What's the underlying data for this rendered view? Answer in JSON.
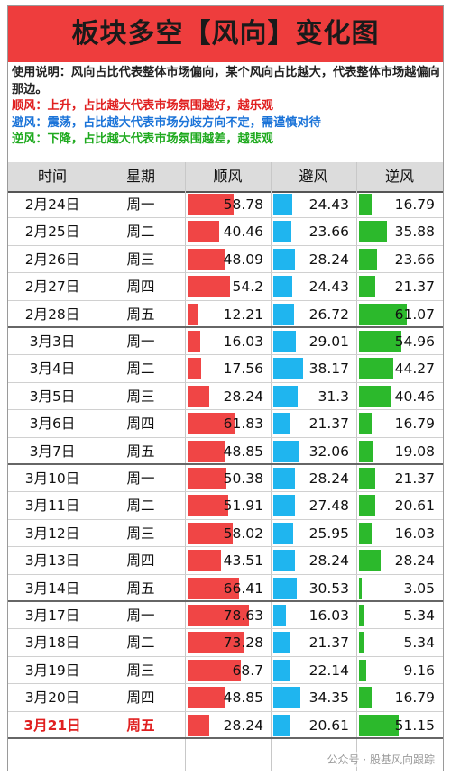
{
  "title": "板块多空【风向】变化图",
  "notes": {
    "usage": "使用说明：风向占比代表整体市场偏向，某个风向占比越大，代表整体市场越偏向那边。",
    "up": "顺风：上升，占比越大代表市场氛围越好，越乐观",
    "mid": "避风：震荡，占比越大代表市场分歧方向不定，需谨慎对待",
    "down": "逆风：下降，占比越大代表市场氛围越差，越悲观"
  },
  "colors": {
    "up": "#f04545",
    "mid": "#1fb5ef",
    "down": "#2cb92c",
    "title_bg": "#ee3d3d"
  },
  "watermark": "公众号 · 股基风向跟踪",
  "chart_data": {
    "type": "table",
    "columns": [
      "时间",
      "星期",
      "顺风",
      "避风",
      "逆风"
    ],
    "bar_max": 100,
    "rows": [
      {
        "date": "2月24日",
        "day": "周一",
        "up": 58.78,
        "mid": 24.43,
        "down": 16.79
      },
      {
        "date": "2月25日",
        "day": "周二",
        "up": 40.46,
        "mid": 23.66,
        "down": 35.88
      },
      {
        "date": "2月26日",
        "day": "周三",
        "up": 48.09,
        "mid": 28.24,
        "down": 23.66
      },
      {
        "date": "2月27日",
        "day": "周四",
        "up": 54.2,
        "mid": 24.43,
        "down": 21.37
      },
      {
        "date": "2月28日",
        "day": "周五",
        "up": 12.21,
        "mid": 26.72,
        "down": 61.07
      },
      {
        "date": "3月3日",
        "day": "周一",
        "up": 16.03,
        "mid": 29.01,
        "down": 54.96
      },
      {
        "date": "3月4日",
        "day": "周二",
        "up": 17.56,
        "mid": 38.17,
        "down": 44.27
      },
      {
        "date": "3月5日",
        "day": "周三",
        "up": 28.24,
        "mid": 31.3,
        "down": 40.46
      },
      {
        "date": "3月6日",
        "day": "周四",
        "up": 61.83,
        "mid": 21.37,
        "down": 16.79
      },
      {
        "date": "3月7日",
        "day": "周五",
        "up": 48.85,
        "mid": 32.06,
        "down": 19.08
      },
      {
        "date": "3月10日",
        "day": "周一",
        "up": 50.38,
        "mid": 28.24,
        "down": 21.37
      },
      {
        "date": "3月11日",
        "day": "周二",
        "up": 51.91,
        "mid": 27.48,
        "down": 20.61
      },
      {
        "date": "3月12日",
        "day": "周三",
        "up": 58.02,
        "mid": 25.95,
        "down": 16.03
      },
      {
        "date": "3月13日",
        "day": "周四",
        "up": 43.51,
        "mid": 28.24,
        "down": 28.24
      },
      {
        "date": "3月14日",
        "day": "周五",
        "up": 66.41,
        "mid": 30.53,
        "down": 3.05
      },
      {
        "date": "3月17日",
        "day": "周一",
        "up": 78.63,
        "mid": 16.03,
        "down": 5.34
      },
      {
        "date": "3月18日",
        "day": "周二",
        "up": 73.28,
        "mid": 21.37,
        "down": 5.34
      },
      {
        "date": "3月19日",
        "day": "周三",
        "up": 68.7,
        "mid": 22.14,
        "down": 9.16
      },
      {
        "date": "3月20日",
        "day": "周四",
        "up": 48.85,
        "mid": 34.35,
        "down": 16.79
      },
      {
        "date": "3月21日",
        "day": "周五",
        "up": 28.24,
        "mid": 20.61,
        "down": 51.15,
        "highlight": true
      }
    ]
  }
}
